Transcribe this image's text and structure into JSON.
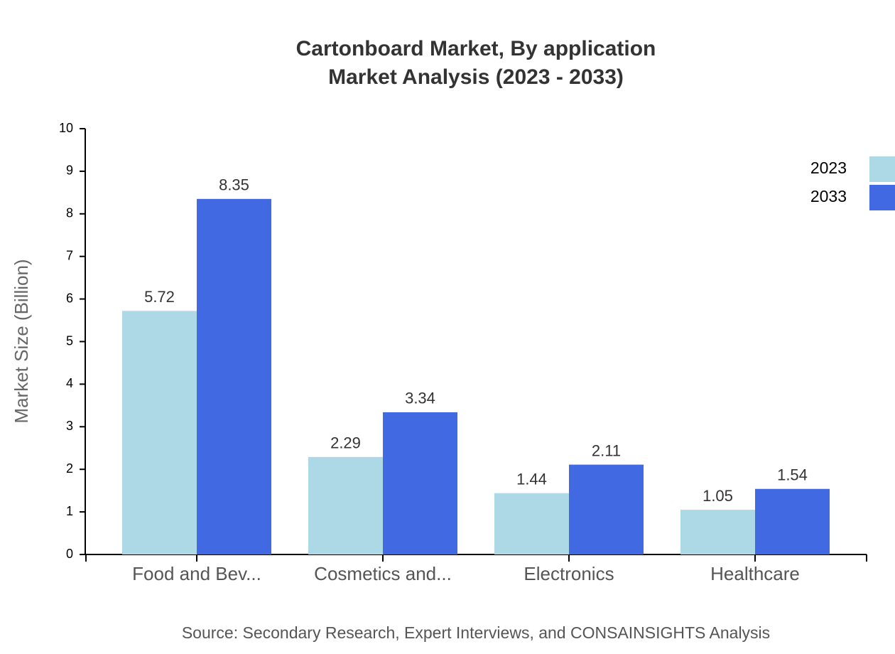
{
  "chart_data": {
    "type": "bar",
    "title": "Cartonboard Market, By application",
    "subtitle": "Market Analysis (2023 - 2033)",
    "y_label": "Market Size (Billion)",
    "source": "Source: Secondary Research, Expert Interviews, and CONSAINSIGHTS Analysis",
    "categories": [
      "Food and Bev...",
      "Cosmetics and...",
      "Electronics",
      "Healthcare"
    ],
    "series": [
      {
        "name": "2023",
        "color": "#add8e6",
        "values": [
          5.72,
          2.29,
          1.44,
          1.05
        ]
      },
      {
        "name": "2033",
        "color": "#4169e1",
        "values": [
          8.35,
          3.34,
          2.11,
          1.54
        ]
      }
    ],
    "ylim": [
      0,
      10
    ],
    "yticks": [
      0,
      1,
      2,
      3,
      4,
      5,
      6,
      7,
      8,
      9,
      10
    ],
    "legend": "top-right"
  }
}
